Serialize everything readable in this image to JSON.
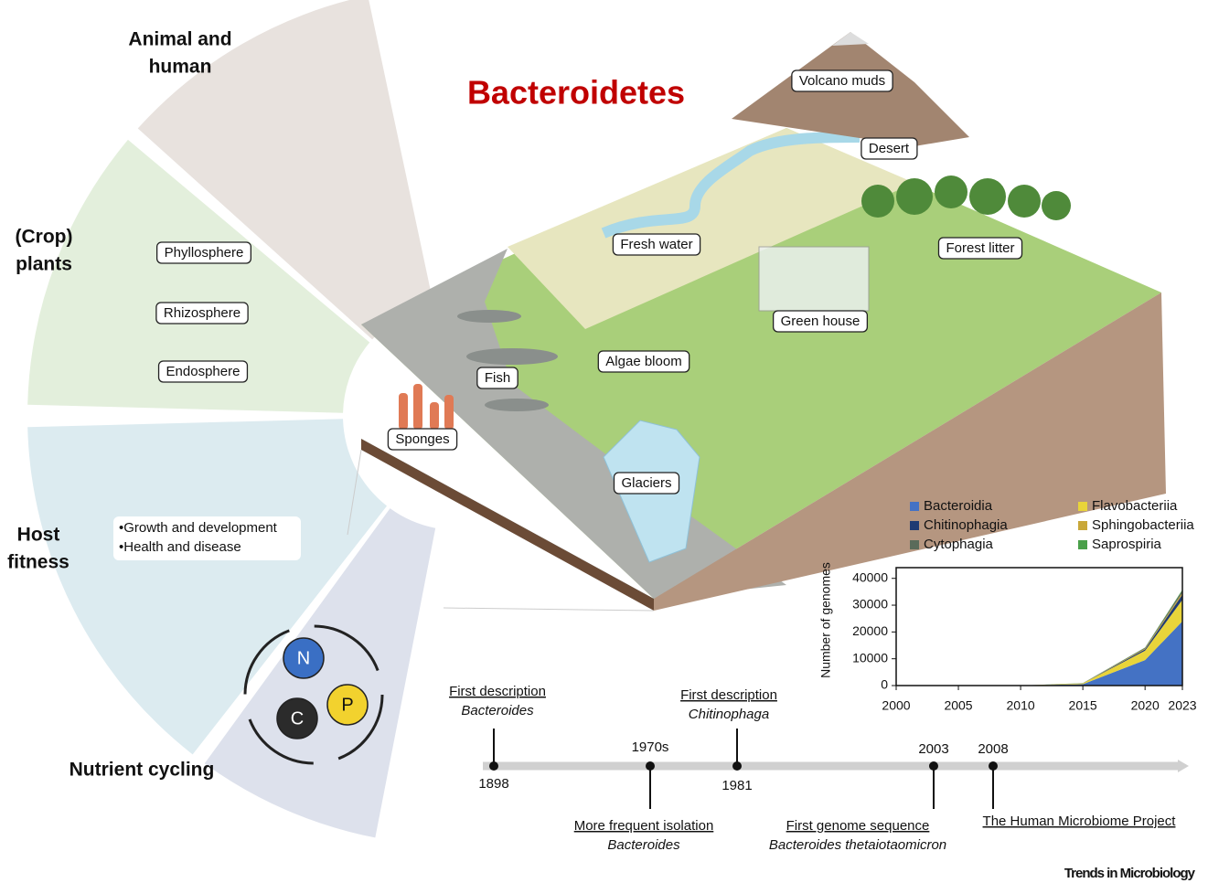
{
  "title": "Bacteroidetes",
  "sectors": [
    {
      "label": [
        "Animal and",
        "human"
      ]
    },
    {
      "label": [
        "(Crop)",
        "plants"
      ],
      "items": [
        "Phyllosphere",
        "Rhizosphere",
        "Endosphere"
      ]
    },
    {
      "label": [
        "Host",
        "fitness"
      ],
      "items": [
        "•Growth and development",
        "•Health and disease"
      ]
    },
    {
      "label": [
        "Nutrient cycling"
      ],
      "items": [
        "N",
        "P",
        "C"
      ]
    }
  ],
  "habitats": [
    "Volcano muds",
    "Desert",
    "Fresh water",
    "Forest litter",
    "Green house",
    "Fish",
    "Algae bloom",
    "Sponges",
    "Glaciers"
  ],
  "timeline": [
    {
      "year": "1898",
      "title": "First description",
      "subtitle": "Bacteroides"
    },
    {
      "year": "1970s",
      "title": "More frequent isolation",
      "subtitle": "Bacteroides"
    },
    {
      "year": "1981",
      "title": "First description",
      "subtitle": "Chitinophaga"
    },
    {
      "year": "2003",
      "title": "First genome sequence",
      "subtitle": "Bacteroides thetaiotaomicron"
    },
    {
      "year": "2008",
      "title": "The Human Microbiome Project"
    }
  ],
  "credit": "Trends in Microbiology",
  "chart_data": {
    "type": "stacked-area",
    "ylabel": "Number of genomes",
    "x": [
      2000,
      2005,
      2010,
      2015,
      2020,
      2023
    ],
    "series": [
      {
        "name": "Bacteroidia",
        "color": "#4472c4",
        "values": [
          0,
          0,
          0,
          500,
          9500,
          24000
        ]
      },
      {
        "name": "Flavobacteriia",
        "color": "#e8d43a",
        "values": [
          0,
          0,
          0,
          300,
          3500,
          8000
        ]
      },
      {
        "name": "Chitinophagia",
        "color": "#1f3b73",
        "values": [
          0,
          0,
          0,
          50,
          500,
          2000
        ]
      },
      {
        "name": "Sphingobacteriia",
        "color": "#c9a83a",
        "values": [
          0,
          0,
          0,
          30,
          300,
          700
        ]
      },
      {
        "name": "Cytophagia",
        "color": "#5a6b5a",
        "values": [
          0,
          0,
          0,
          30,
          300,
          800
        ]
      },
      {
        "name": "Saprospiria",
        "color": "#4aa04a",
        "values": [
          0,
          0,
          0,
          10,
          100,
          300
        ]
      }
    ],
    "xlim": [
      2000,
      2023
    ],
    "xticks": [
      2000,
      2005,
      2010,
      2015,
      2020,
      2023
    ],
    "ylim": [
      0,
      44000
    ],
    "yticks": [
      0,
      10000,
      20000,
      30000,
      40000
    ]
  }
}
